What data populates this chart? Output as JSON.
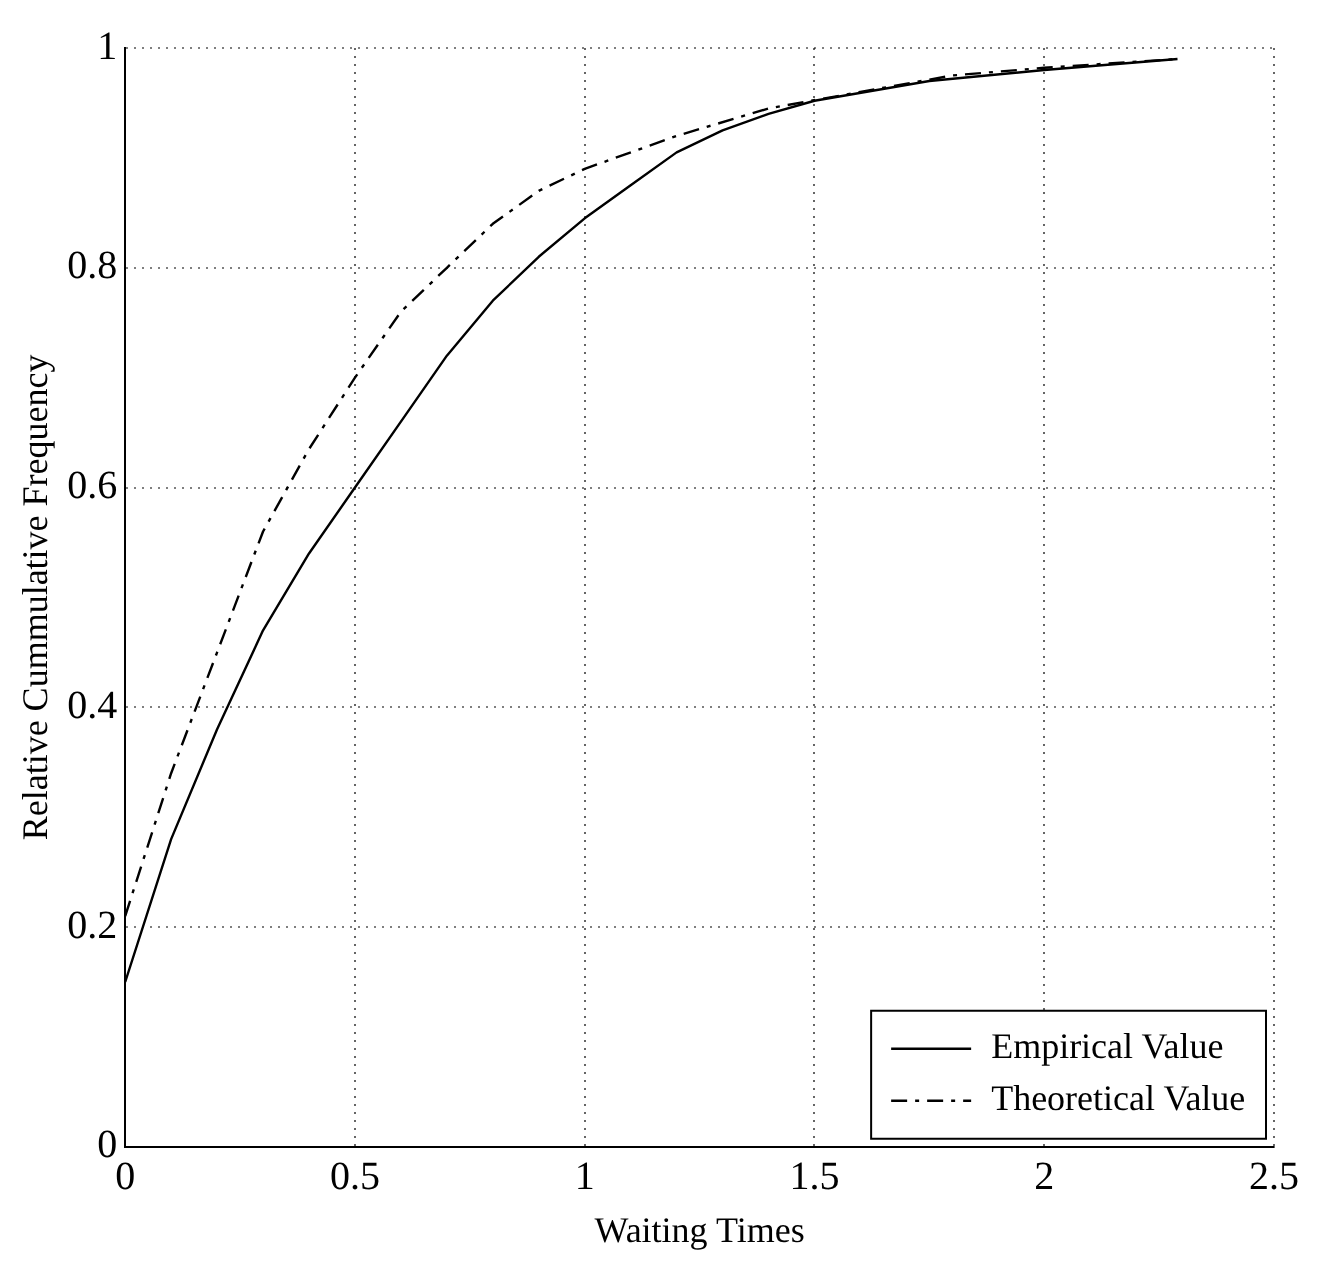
{
  "chart_data": {
    "type": "line",
    "xlabel": "Waiting Times",
    "ylabel": "Relative Cummulative Frequency",
    "xlim": [
      0,
      2.5
    ],
    "xticks": [
      0,
      0.5,
      1,
      1.5,
      2,
      2.5
    ],
    "ylim": [
      0,
      1
    ],
    "yticks": [
      0,
      0.2,
      0.4,
      0.6,
      0.8,
      1
    ],
    "grid": true,
    "legend": "bottom right",
    "marker": "none",
    "series": [
      {
        "name": "Empirical Value",
        "color": "#000000",
        "line_style": "solid",
        "x": [
          0,
          0.1,
          0.2,
          0.3,
          0.4,
          0.5,
          0.6,
          0.7,
          0.8,
          0.9,
          1,
          1.1,
          1.2,
          1.3,
          1.4,
          1.5,
          1.75,
          2,
          2.29
        ],
        "values": [
          0.15,
          0.28,
          0.38,
          0.47,
          0.54,
          0.6,
          0.66,
          0.72,
          0.77,
          0.81,
          0.845,
          0.875,
          0.905,
          0.925,
          0.94,
          0.952,
          0.97,
          0.98,
          0.99
        ]
      },
      {
        "name": "Theoretical Value",
        "color": "#000000",
        "line_style": "dashed",
        "x": [
          0,
          0.1,
          0.2,
          0.3,
          0.4,
          0.5,
          0.6,
          0.7,
          0.8,
          0.9,
          1,
          1.2,
          1.4,
          1.6,
          1.8,
          2,
          2.29
        ],
        "values": [
          0.21,
          0.34,
          0.45,
          0.56,
          0.635,
          0.7,
          0.76,
          0.8,
          0.84,
          0.87,
          0.89,
          0.92,
          0.945,
          0.96,
          0.975,
          0.982,
          0.99
        ]
      }
    ]
  }
}
